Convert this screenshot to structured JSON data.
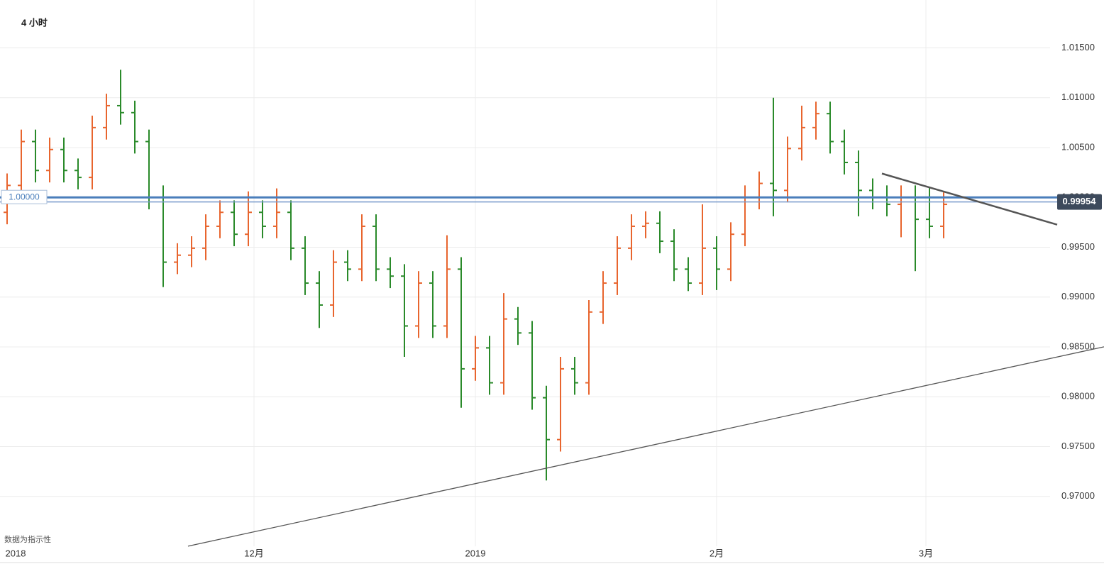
{
  "chart_data": {
    "type": "ohlc",
    "title": "4 小时",
    "note": "数据为指示性",
    "open": [
      0.9985,
      1.0012,
      1.0056,
      1.0027,
      1.0048,
      1.0027,
      1.002,
      1.007,
      1.0092,
      1.0085,
      1.0056,
      1.0,
      0.9935,
      0.9942,
      0.9949,
      0.9971,
      0.9985,
      0.9963,
      0.9985,
      0.9971,
      0.9985,
      0.9949,
      0.9914,
      0.9892,
      0.9935,
      0.9928,
      0.9971,
      0.9928,
      0.9921,
      0.9871,
      0.9914,
      0.9871,
      0.9928,
      0.9828,
      0.9849,
      0.9814,
      0.9878,
      0.9864,
      0.9799,
      0.9757,
      0.9828,
      0.9814,
      0.9885,
      0.9914,
      0.9949,
      0.9971,
      0.9974,
      0.9956,
      0.9928,
      0.9914,
      0.9949,
      0.9928,
      0.9963,
      1.0,
      1.0014,
      1.0007,
      1.0049,
      1.007,
      1.0084,
      1.0056,
      1.0035,
      1.0007,
      1.0,
      0.9993,
      1.0,
      0.9978,
      0.9971
    ],
    "high": [
      1.0024,
      1.0068,
      1.0068,
      1.006,
      1.006,
      1.0039,
      1.0082,
      1.0104,
      1.0128,
      1.0097,
      1.0068,
      1.0012,
      0.9954,
      0.9961,
      0.9983,
      0.9997,
      0.9997,
      1.0006,
      0.9997,
      1.0009,
      0.9997,
      0.9961,
      0.9926,
      0.9947,
      0.9947,
      0.9983,
      0.9983,
      0.994,
      0.9933,
      0.9926,
      0.9926,
      0.9962,
      0.994,
      0.9861,
      0.9861,
      0.9904,
      0.989,
      0.9876,
      0.9811,
      0.984,
      0.984,
      0.9897,
      0.9926,
      0.9961,
      0.9983,
      0.9986,
      0.9986,
      0.9968,
      0.994,
      0.9993,
      0.9961,
      0.9975,
      1.0012,
      1.0026,
      1.01,
      1.0061,
      1.0092,
      1.0096,
      1.0096,
      1.0068,
      1.0047,
      1.0019,
      1.0012,
      1.0012,
      1.0012,
      1.001,
      1.0005
    ],
    "low": [
      0.9973,
      1.0,
      1.0015,
      1.0015,
      1.0015,
      1.0008,
      1.0008,
      1.0058,
      1.0073,
      1.0044,
      0.9988,
      0.991,
      0.9923,
      0.993,
      0.9937,
      0.9959,
      0.9951,
      0.9951,
      0.9959,
      0.9959,
      0.9937,
      0.9902,
      0.9869,
      0.988,
      0.9916,
      0.9916,
      0.9916,
      0.9909,
      0.984,
      0.9859,
      0.9859,
      0.9859,
      0.9789,
      0.9816,
      0.9802,
      0.9802,
      0.9852,
      0.9787,
      0.9716,
      0.9745,
      0.9802,
      0.9802,
      0.9873,
      0.9902,
      0.9937,
      0.9959,
      0.9944,
      0.9916,
      0.9906,
      0.9902,
      0.9907,
      0.9916,
      0.9951,
      0.9988,
      0.9981,
      0.9995,
      1.0037,
      1.0058,
      1.0044,
      1.0023,
      0.9981,
      0.9988,
      0.9981,
      0.996,
      0.9926,
      0.9959,
      0.9959
    ],
    "close": [
      1.0012,
      1.0056,
      1.0027,
      1.0048,
      1.0027,
      1.002,
      1.007,
      1.0092,
      1.0085,
      1.0056,
      1.0,
      0.9935,
      0.9942,
      0.9949,
      0.9971,
      0.9985,
      0.9963,
      0.9985,
      0.9971,
      0.9985,
      0.9949,
      0.9914,
      0.9892,
      0.9935,
      0.9928,
      0.9971,
      0.9928,
      0.9921,
      0.9871,
      0.9914,
      0.9871,
      0.9928,
      0.9828,
      0.9849,
      0.9814,
      0.9878,
      0.9864,
      0.9799,
      0.9757,
      0.9828,
      0.9814,
      0.9885,
      0.9914,
      0.9949,
      0.9971,
      0.9974,
      0.9956,
      0.9928,
      0.9914,
      0.9949,
      0.9928,
      0.9963,
      1.0,
      1.0014,
      1.0007,
      1.0049,
      1.007,
      1.0084,
      1.0056,
      1.0035,
      1.0007,
      1.0,
      0.9993,
      1.0,
      0.9978,
      0.9971,
      0.9993
    ],
    "up_color": "#e8652e",
    "down_color": "#2a8a2a",
    "xlim": [
      -0.5,
      77.3
    ],
    "xticks": [
      {
        "value": 0.6,
        "label": "2018"
      },
      {
        "value": 17.4,
        "label": "12月"
      },
      {
        "value": 33,
        "label": "2019"
      },
      {
        "value": 50,
        "label": "2月"
      },
      {
        "value": 64.75,
        "label": "3月"
      }
    ],
    "ylim": [
      0.965,
      1.0198
    ],
    "yticks": [
      {
        "value": 0.97,
        "label": "0.97000"
      },
      {
        "value": 0.975,
        "label": "0.97500"
      },
      {
        "value": 0.98,
        "label": "0.98000"
      },
      {
        "value": 0.985,
        "label": "0.98500"
      },
      {
        "value": 0.99,
        "label": "0.99000"
      },
      {
        "value": 0.995,
        "label": "0.99500"
      },
      {
        "value": 1.0,
        "label": "1.00000"
      },
      {
        "value": 1.005,
        "label": "1.00500"
      },
      {
        "value": 1.01,
        "label": "1.01000"
      },
      {
        "value": 1.015,
        "label": "1.01500"
      }
    ],
    "grid": true,
    "price_lines": [
      {
        "value": 1.0,
        "label": "1.00000",
        "color": "#4a7ebb"
      },
      {
        "value": 0.99954,
        "label": "0.99954",
        "color": "#3d4a5c"
      }
    ],
    "trendlines": [
      {
        "x": [
          12.75,
          77.3
        ],
        "y": [
          0.96501,
          0.98501
        ]
      },
      {
        "x": [
          61.65,
          74
        ],
        "y": [
          1.00239,
          0.99726
        ]
      }
    ]
  }
}
